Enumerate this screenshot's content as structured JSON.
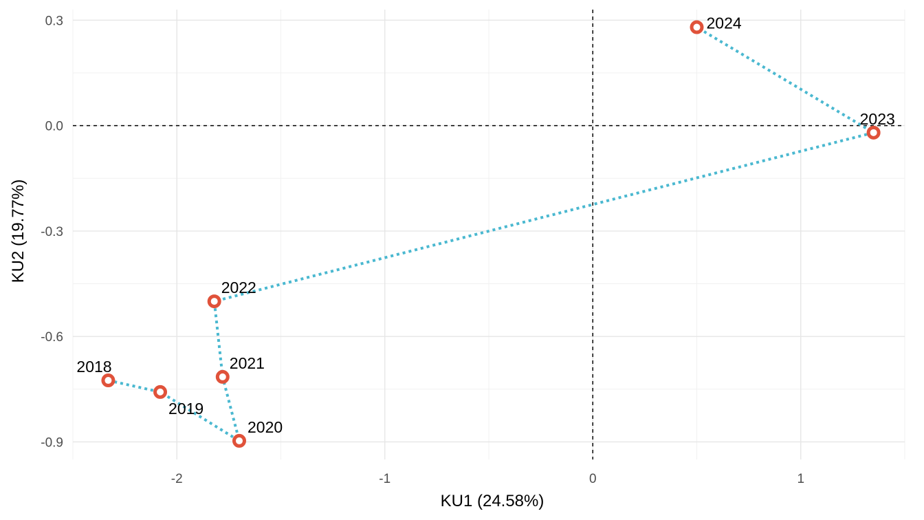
{
  "chart_data": {
    "type": "scatter",
    "title": "",
    "xlabel": "KU1 (24.58%)",
    "ylabel": "KU2 (19.77%)",
    "xlim": [
      -2.5,
      1.5
    ],
    "ylim": [
      -0.95,
      0.33
    ],
    "x_ticks": [
      -2,
      -1,
      0,
      1
    ],
    "y_ticks": [
      0.3,
      0.0,
      -0.3,
      -0.6,
      -0.9
    ],
    "x_tick_labels": [
      "-2",
      "-1",
      "0",
      "1"
    ],
    "y_tick_labels": [
      "0.3",
      "0.0",
      "-0.3",
      "-0.6",
      "-0.9"
    ],
    "reference_lines": {
      "x": 0,
      "y": 0,
      "style": "dashed"
    },
    "grid": true,
    "path_style": "dotted line with arrowhead at end",
    "colors": {
      "points": "#e0523a",
      "path": "#4ab8d0",
      "grid": "#e6e6e6"
    },
    "points": [
      {
        "label": "2018",
        "x": -2.33,
        "y": -0.725
      },
      {
        "label": "2019",
        "x": -2.08,
        "y": -0.758
      },
      {
        "label": "2020",
        "x": -1.7,
        "y": -0.897
      },
      {
        "label": "2021",
        "x": -1.78,
        "y": -0.715
      },
      {
        "label": "2022",
        "x": -1.82,
        "y": -0.5
      },
      {
        "label": "2023",
        "x": 1.35,
        "y": -0.02
      },
      {
        "label": "2024",
        "x": 0.5,
        "y": 0.28
      }
    ]
  }
}
